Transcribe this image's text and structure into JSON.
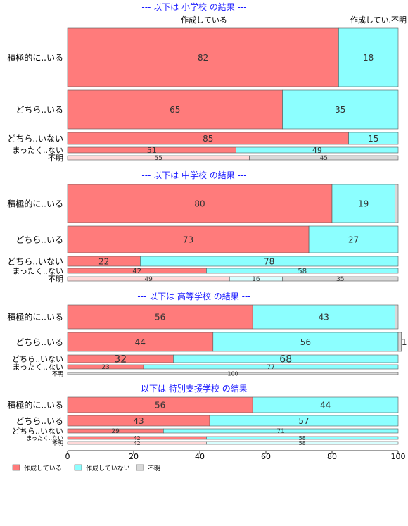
{
  "chart_data": {
    "type": "bar",
    "orientation": "horizontal-stacked",
    "xlim": [
      0,
      100
    ],
    "x_ticks": [
      "0",
      "20",
      "40",
      "60",
      "80",
      "100"
    ],
    "grid": false,
    "legend_position": "bottom-left",
    "top_column_labels": [
      "作成している",
      "作成してい.不明"
    ],
    "legend": [
      {
        "name": "作成している",
        "color": "#ff7b7b"
      },
      {
        "name": "作成していない",
        "color": "#8cffff"
      },
      {
        "name": "不明",
        "color": "#d9d9d9"
      }
    ],
    "panels": [
      {
        "title": "--- 以下は 小学校 の結果 ---",
        "rows": [
          {
            "label": "積極的に..いる",
            "segments": [
              82,
              18,
              0
            ],
            "labels": [
              "82",
              "18",
              ""
            ],
            "highlight": false
          },
          {
            "label": "どちら..いる",
            "segments": [
              65,
              35,
              0
            ],
            "labels": [
              "65",
              "35",
              ""
            ],
            "highlight": false
          },
          {
            "label": "どちら..いない",
            "segments": [
              85,
              15,
              0
            ],
            "labels": [
              "85",
              "15",
              ""
            ],
            "highlight": false
          },
          {
            "label": "まったく..ない",
            "segments": [
              51,
              49,
              0
            ],
            "labels": [
              "51",
              "49",
              ""
            ],
            "highlight": false
          },
          {
            "label": "不明",
            "segments": [
              55,
              0,
              45
            ],
            "labels": [
              "55",
              "",
              "45"
            ],
            "highlight": true
          }
        ]
      },
      {
        "title": "--- 以下は 中学校 の結果 ---",
        "rows": [
          {
            "label": "積極的に..いる",
            "segments": [
              80,
              19,
              1
            ],
            "labels": [
              "80",
              "19",
              ""
            ],
            "highlight": false
          },
          {
            "label": "どちら..いる",
            "segments": [
              73,
              27,
              0
            ],
            "labels": [
              "73",
              "27",
              ""
            ],
            "highlight": false
          },
          {
            "label": "どちら..いない",
            "segments": [
              22,
              78,
              0
            ],
            "labels": [
              "22",
              "78",
              ""
            ],
            "highlight": false
          },
          {
            "label": "まったく..ない",
            "segments": [
              42,
              58,
              0
            ],
            "labels": [
              "42",
              "58",
              ""
            ],
            "highlight": false
          },
          {
            "label": "不明",
            "segments": [
              49,
              16,
              35
            ],
            "labels": [
              "49",
              "16",
              "35"
            ],
            "highlight": true
          }
        ]
      },
      {
        "title": "--- 以下は 高等学校 の結果 ---",
        "rows": [
          {
            "label": "積極的に..いる",
            "segments": [
              56,
              43,
              1
            ],
            "labels": [
              "56",
              "43",
              ""
            ],
            "highlight": false
          },
          {
            "label": "どちら..いる",
            "segments": [
              44,
              56,
              1
            ],
            "labels": [
              "44",
              "56",
              "1"
            ],
            "highlight": false
          },
          {
            "label": "どちら..いない",
            "segments": [
              32,
              68,
              0
            ],
            "labels": [
              "32",
              "68",
              ""
            ],
            "highlight": false
          },
          {
            "label": "まったく..ない",
            "segments": [
              23,
              77,
              0
            ],
            "labels": [
              "23",
              "77",
              ""
            ],
            "highlight": false
          },
          {
            "label": "不明",
            "segments": [
              0,
              0,
              100
            ],
            "labels": [
              "",
              "",
              "100"
            ],
            "highlight": true
          }
        ]
      },
      {
        "title": "--- 以下は 特別支援学校 の結果 ---",
        "rows": [
          {
            "label": "積極的に..いる",
            "segments": [
              56,
              44,
              0
            ],
            "labels": [
              "56",
              "44",
              ""
            ],
            "highlight": false
          },
          {
            "label": "どちら..いる",
            "segments": [
              43,
              57,
              0
            ],
            "labels": [
              "43",
              "57",
              ""
            ],
            "highlight": false
          },
          {
            "label": "どちら..いない",
            "segments": [
              29,
              71,
              0
            ],
            "labels": [
              "29",
              "71",
              ""
            ],
            "highlight": false
          },
          {
            "label": "まったく..ない",
            "segments": [
              42,
              58,
              0
            ],
            "labels": [
              "42",
              "58",
              ""
            ],
            "highlight": false
          },
          {
            "label": "不明",
            "segments": [
              42,
              58,
              0
            ],
            "labels": [
              "42",
              "58",
              ""
            ],
            "highlight": true
          }
        ]
      }
    ]
  }
}
